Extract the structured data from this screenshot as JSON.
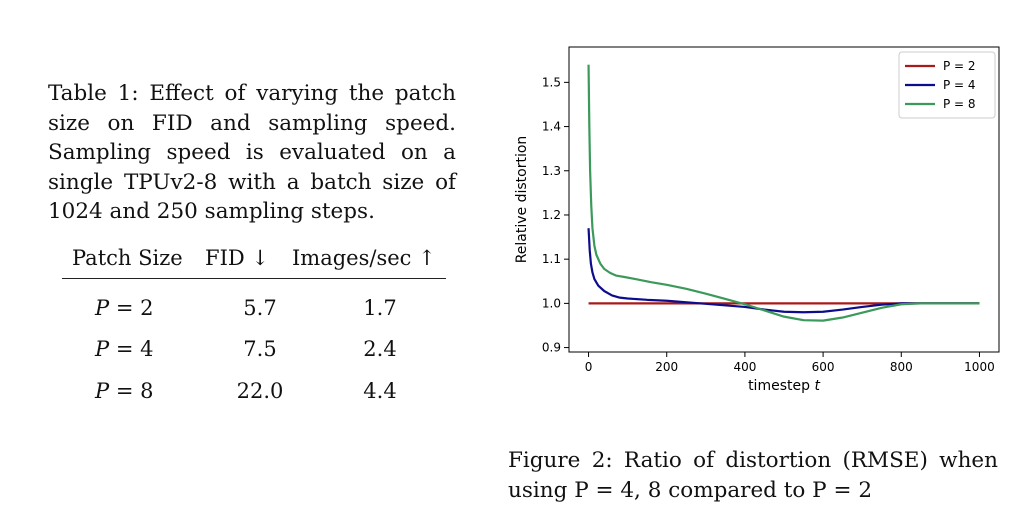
{
  "table": {
    "caption": "Table 1: Effect of varying the patch size on FID and sampling speed. Sampling speed is evaluated on a single TPUv2-8 with a batch size of 1024 and 250 sampling steps.",
    "headers": [
      "Patch Size",
      "FID ↓",
      "Images/sec ↑"
    ],
    "rows": [
      {
        "p": "P",
        "eq": " = 2",
        "fid": "5.7",
        "speed": "1.7"
      },
      {
        "p": "P",
        "eq": " = 4",
        "fid": "7.5",
        "speed": "2.4"
      },
      {
        "p": "P",
        "eq": " = 8",
        "fid": "22.0",
        "speed": "4.4"
      }
    ]
  },
  "figure": {
    "caption": "Figure 2: Ratio of distortion (RMSE) when using P = 4, 8 compared to P = 2"
  },
  "chart_data": {
    "type": "line",
    "xlabel": "timestep t",
    "ylabel": "Relative distortion",
    "xlim": [
      -50,
      1050
    ],
    "ylim": [
      0.89,
      1.58
    ],
    "xticks": [
      0,
      200,
      400,
      600,
      800,
      1000
    ],
    "yticks": [
      0.9,
      1.0,
      1.1,
      1.2,
      1.3,
      1.4,
      1.5
    ],
    "ytick_labels": [
      "0.9",
      "1.0",
      "1.1",
      "1.2",
      "1.3",
      "1.4",
      "1.5"
    ],
    "grid": false,
    "legend_position": "top-right",
    "series": [
      {
        "name": "P = 2",
        "color": "#a81a1a",
        "x": [
          0,
          1000
        ],
        "y": [
          1.0,
          1.0
        ]
      },
      {
        "name": "P = 4",
        "color": "#0d0d8c",
        "x": [
          0,
          3,
          6,
          10,
          15,
          25,
          40,
          60,
          80,
          100,
          150,
          200,
          300,
          400,
          450,
          500,
          550,
          600,
          650,
          700,
          750,
          800,
          850,
          900,
          1000
        ],
        "y": [
          1.17,
          1.12,
          1.09,
          1.07,
          1.055,
          1.04,
          1.028,
          1.018,
          1.013,
          1.011,
          1.008,
          1.006,
          0.999,
          0.992,
          0.986,
          0.981,
          0.98,
          0.981,
          0.986,
          0.992,
          0.997,
          1.0,
          1.0,
          1.0,
          1.0
        ]
      },
      {
        "name": "P = 8",
        "color": "#3b9a5a",
        "x": [
          0,
          2,
          4,
          7,
          10,
          15,
          20,
          30,
          40,
          55,
          70,
          90,
          120,
          160,
          200,
          250,
          300,
          350,
          400,
          450,
          500,
          550,
          600,
          650,
          700,
          750,
          800,
          850,
          900,
          1000
        ],
        "y": [
          1.54,
          1.4,
          1.3,
          1.22,
          1.17,
          1.13,
          1.11,
          1.09,
          1.078,
          1.069,
          1.063,
          1.06,
          1.055,
          1.048,
          1.042,
          1.033,
          1.022,
          1.01,
          0.998,
          0.984,
          0.97,
          0.962,
          0.961,
          0.968,
          0.979,
          0.99,
          0.998,
          1.0,
          1.0,
          1.0
        ]
      }
    ]
  }
}
